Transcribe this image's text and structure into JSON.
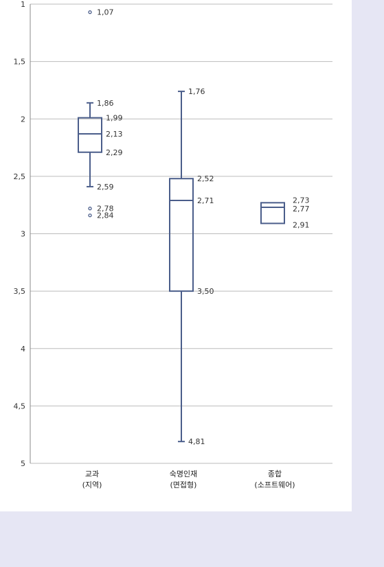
{
  "chart_data": {
    "type": "boxplot",
    "y_axis": {
      "min": 1,
      "max": 5,
      "inverted": true,
      "ticks": [
        "1",
        "1,5",
        "2",
        "2,5",
        "3",
        "3,5",
        "4",
        "4,5",
        "5"
      ]
    },
    "grid": true,
    "categories": [
      {
        "line1": "교과",
        "line2": "(지역)"
      },
      {
        "line1": "숙명인재",
        "line2": "(면접형)"
      },
      {
        "line1": "종합",
        "line2": "(소프트웨어)"
      }
    ],
    "boxes": [
      {
        "whisker_low": 1.86,
        "q1": 1.99,
        "median": 2.13,
        "q3": 2.29,
        "whisker_high": 2.59,
        "outliers": [
          1.07,
          2.78,
          2.84
        ],
        "labels": {
          "whisker_low": "1,86",
          "q1": "1,99",
          "median": "2,13",
          "q3": "2,29",
          "whisker_high": "2,59",
          "outliers": [
            "1,07",
            "2,78",
            "2,84"
          ]
        }
      },
      {
        "whisker_low": 1.76,
        "q1": 2.52,
        "median": 2.71,
        "q3": 3.5,
        "whisker_high": 4.81,
        "outliers": [],
        "labels": {
          "whisker_low": "1,76",
          "q1": "2,52",
          "median": "2,71",
          "q3": "3,50",
          "whisker_high": "4,81",
          "outliers": []
        }
      },
      {
        "whisker_low": null,
        "q1": 2.73,
        "median": 2.77,
        "q3": 2.91,
        "whisker_high": null,
        "outliers": [],
        "labels": {
          "q1": "2,73",
          "median": "2,77",
          "q3": "2,91",
          "outliers": []
        }
      }
    ],
    "colors": {
      "box": "#4a5d8a",
      "grid": "#bbbbbb",
      "axis": "#888888"
    }
  }
}
